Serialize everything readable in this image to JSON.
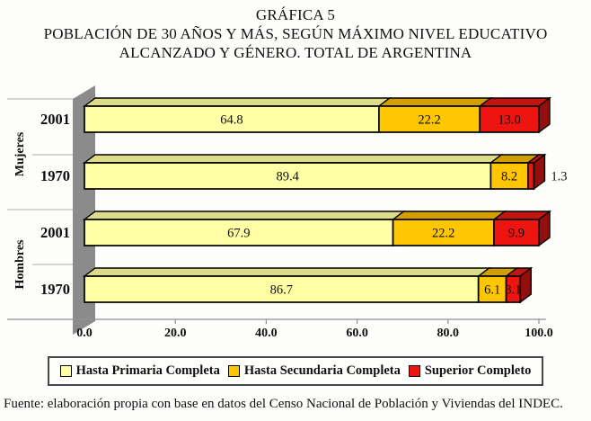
{
  "title": {
    "line1": "GRÁFICA 5",
    "line2": "POBLACIÓN DE 30 AÑOS Y MÁS, SEGÚN MÁXIMO NIVEL EDUCATIVO",
    "line3": "ALCANZADO Y GÉNERO. TOTAL DE ARGENTINA"
  },
  "chart_data": {
    "type": "bar",
    "variant": "horizontal-stacked-3d",
    "title": "GRÁFICA 5. POBLACIÓN DE 30 AÑOS Y MÁS, SEGÚN MÁXIMO NIVEL EDUCATIVO ALCANZADO Y GÉNERO. TOTAL DE ARGENTINA",
    "categories": [
      {
        "group": "Mujeres",
        "year": "2001"
      },
      {
        "group": "Mujeres",
        "year": "1970"
      },
      {
        "group": "Hombres",
        "year": "2001"
      },
      {
        "group": "Hombres",
        "year": "1970"
      }
    ],
    "series": [
      {
        "name": "Hasta Primaria Completa",
        "color": "#ffffa6",
        "top_color": "#dcdc8a",
        "side_color": "#b9b970",
        "values": [
          64.8,
          89.4,
          67.9,
          86.7
        ]
      },
      {
        "name": "Hasta Secundaria Completa",
        "color": "#fec501",
        "top_color": "#d29f00",
        "side_color": "#a57c00",
        "values": [
          22.2,
          8.2,
          22.2,
          6.1
        ]
      },
      {
        "name": "Superior Completo",
        "color": "#ee1410",
        "top_color": "#c21512",
        "side_color": "#930e0c",
        "values": [
          13.0,
          1.3,
          9.9,
          3.1
        ]
      }
    ],
    "xlim": [
      0,
      100
    ],
    "x_ticks": [
      0,
      20,
      40,
      60,
      80,
      100
    ],
    "x_tick_labels": [
      "0.0",
      "20.0",
      "40.0",
      "60.0",
      "80.0",
      "100.0"
    ],
    "outside_labels": [
      {
        "category_index": 1,
        "series_index": 2,
        "label": "1.3"
      }
    ],
    "legend_position": "bottom",
    "wall_color": "#8b8b8b",
    "grid": false
  },
  "source": "Fuente: elaboración propia con base en datos del Censo Nacional de Población y Viviendas del INDEC."
}
